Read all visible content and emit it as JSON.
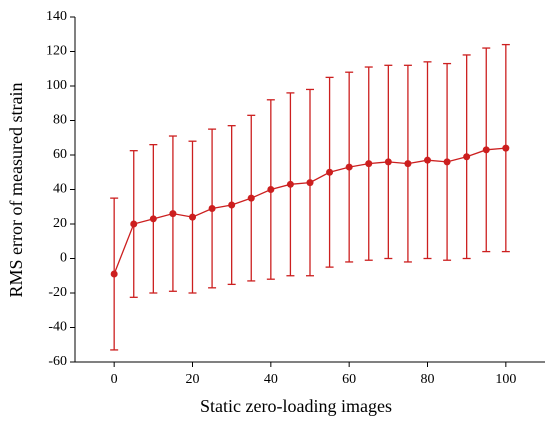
{
  "chart_data": {
    "type": "errorbar-line",
    "x_label": "Static zero-loading images",
    "y_label": "RMS error of measured strain",
    "x": [
      0,
      5,
      10,
      15,
      20,
      25,
      30,
      35,
      40,
      45,
      50,
      55,
      60,
      65,
      70,
      75,
      80,
      85,
      90,
      95,
      100
    ],
    "series": [
      {
        "color": "#cc1f1f",
        "values": [
          -9,
          20,
          23,
          26,
          24,
          29,
          31,
          35,
          40,
          43,
          44,
          50,
          53,
          55,
          56,
          55,
          57,
          56,
          59,
          63,
          64
        ],
        "errors": [
          44,
          42.5,
          43,
          45,
          44,
          46,
          46,
          48,
          52,
          53,
          54,
          55,
          55,
          56,
          56,
          57,
          57,
          57,
          59,
          59,
          60
        ]
      }
    ],
    "xlim": [
      -10,
      110
    ],
    "ylim": [
      -60,
      140
    ],
    "xticks": [
      0,
      20,
      40,
      60,
      80,
      100
    ],
    "yticks": [
      -60,
      -40,
      -20,
      0,
      20,
      40,
      60,
      80,
      100,
      120,
      140
    ]
  }
}
